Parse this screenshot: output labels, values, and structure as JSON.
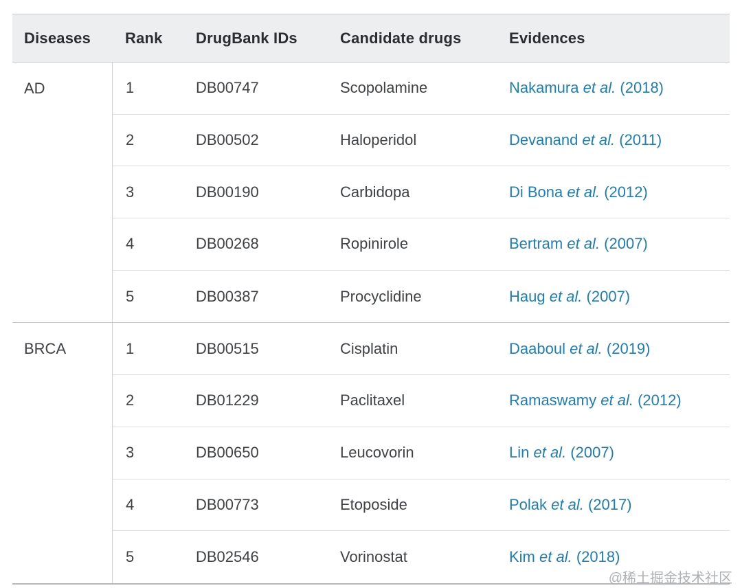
{
  "table": {
    "columns": [
      "Diseases",
      "Rank",
      "DrugBank IDs",
      "Candidate drugs",
      "Evidences"
    ],
    "groups": [
      {
        "disease": "AD",
        "rows": [
          {
            "rank": "1",
            "drugbank_id": "DB00747",
            "drug": "Scopolamine",
            "evidence": {
              "name": "Nakamura",
              "etal": "et al.",
              "year": "(2018)"
            }
          },
          {
            "rank": "2",
            "drugbank_id": "DB00502",
            "drug": "Haloperidol",
            "evidence": {
              "name": "Devanand",
              "etal": "et al.",
              "year": "(2011)"
            }
          },
          {
            "rank": "3",
            "drugbank_id": "DB00190",
            "drug": "Carbidopa",
            "evidence": {
              "name": "Di Bona",
              "etal": "et al.",
              "year": "(2012)"
            }
          },
          {
            "rank": "4",
            "drugbank_id": "DB00268",
            "drug": "Ropinirole",
            "evidence": {
              "name": "Bertram",
              "etal": "et al.",
              "year": "(2007)"
            }
          },
          {
            "rank": "5",
            "drugbank_id": "DB00387",
            "drug": "Procyclidine",
            "evidence": {
              "name": "Haug",
              "etal": "et al.",
              "year": "(2007)"
            }
          }
        ]
      },
      {
        "disease": "BRCA",
        "rows": [
          {
            "rank": "1",
            "drugbank_id": "DB00515",
            "drug": "Cisplatin",
            "evidence": {
              "name": "Daaboul",
              "etal": "et al.",
              "year": "(2019)"
            }
          },
          {
            "rank": "2",
            "drugbank_id": "DB01229",
            "drug": "Paclitaxel",
            "evidence": {
              "name": "Ramaswamy",
              "etal": "et al.",
              "year": "(2012)"
            }
          },
          {
            "rank": "3",
            "drugbank_id": "DB00650",
            "drug": "Leucovorin",
            "evidence": {
              "name": "Lin",
              "etal": "et al.",
              "year": "(2007)"
            }
          },
          {
            "rank": "4",
            "drugbank_id": "DB00773",
            "drug": "Etoposide",
            "evidence": {
              "name": "Polak",
              "etal": "et al.",
              "year": "(2017)"
            }
          },
          {
            "rank": "5",
            "drugbank_id": "DB02546",
            "drug": "Vorinostat",
            "evidence": {
              "name": "Kim",
              "etal": "et al.",
              "year": "(2018)"
            }
          }
        ]
      }
    ]
  },
  "watermark": "@稀土掘金技术社区",
  "colors": {
    "link_blue": "#1d7db6",
    "header_bg": "#eceef0",
    "body_text": "#3f4245",
    "header_text": "#2b2d30",
    "row_divider": "#dcdee1",
    "group_divider": "#c6cace"
  }
}
